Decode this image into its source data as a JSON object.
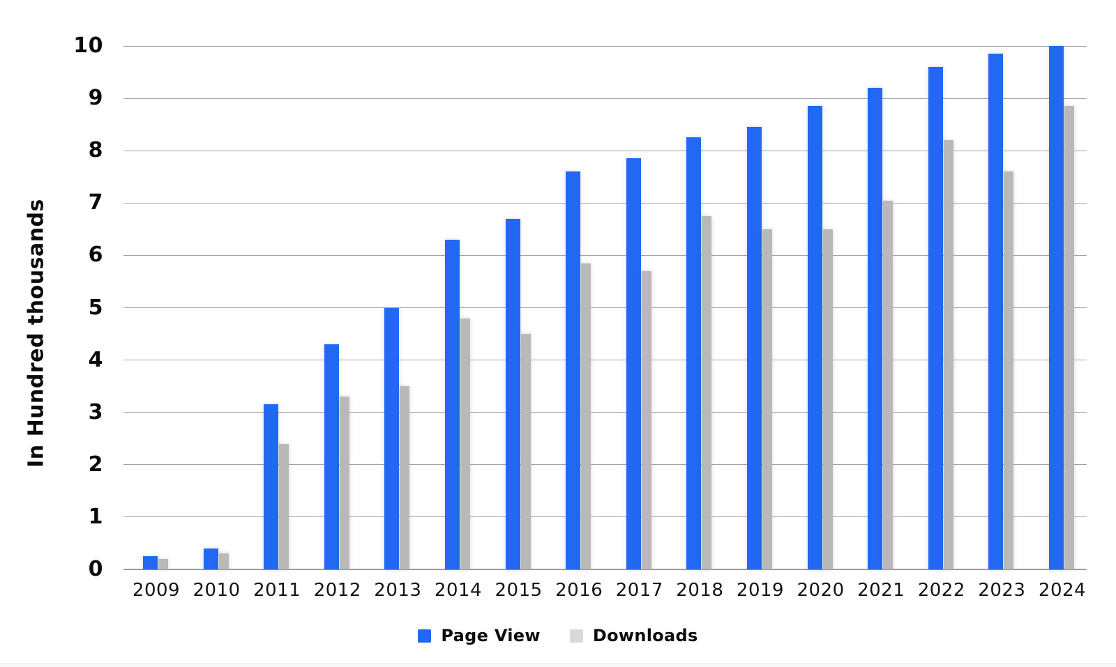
{
  "y_axis": {
    "title": "In Hundred thousands"
  },
  "colors": {
    "page_view_bar": "#2268f2",
    "downloads_bar": "#b9b9b9",
    "downloads_legend_swatch": "#d9d9d9",
    "gridline": "#a3a3a3",
    "axis_line": "#9b9b9b",
    "background": "#ffffff"
  },
  "chart_data": {
    "type": "bar",
    "title": "",
    "xlabel": "",
    "ylabel": "In Hundred thousands",
    "ylim": [
      0,
      10
    ],
    "yticks": [
      0,
      1,
      2,
      3,
      4,
      5,
      6,
      7,
      8,
      9,
      10
    ],
    "grid": "horizontal",
    "legend_position": "bottom",
    "categories": [
      "2009",
      "2010",
      "2011",
      "2012",
      "2013",
      "2014",
      "2015",
      "2016",
      "2017",
      "2018",
      "2019",
      "2020",
      "2021",
      "2022",
      "2023",
      "2024"
    ],
    "series": [
      {
        "name": "Page View",
        "color": "#2268f2",
        "legend_color": "#2268f2",
        "values": [
          0.25,
          0.4,
          3.15,
          4.3,
          5.0,
          6.3,
          6.7,
          7.6,
          7.85,
          8.25,
          8.45,
          8.85,
          9.2,
          9.6,
          9.85,
          10.0
        ]
      },
      {
        "name": "Downloads",
        "color": "#b9b9b9",
        "legend_color": "#d9d9d9",
        "values": [
          0.2,
          0.3,
          2.4,
          3.3,
          3.5,
          4.8,
          4.5,
          5.85,
          5.7,
          6.75,
          6.5,
          6.5,
          7.05,
          8.2,
          7.6,
          8.85
        ]
      }
    ]
  }
}
